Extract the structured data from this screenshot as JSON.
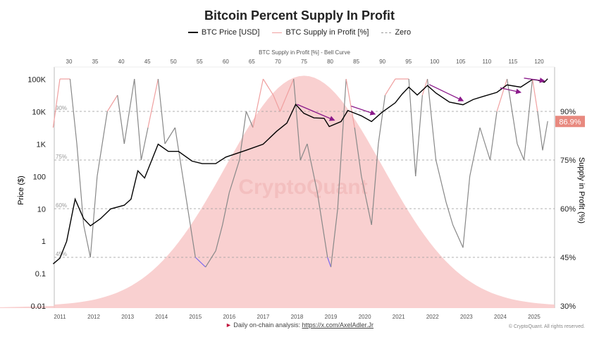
{
  "chart_data": {
    "type": "line",
    "title": "Bitcoin Percent Supply In Profit",
    "legend": [
      "BTC Price [USD]",
      "BTC Supply in Profit [%]",
      "Zero"
    ],
    "legend_placement": "top-center",
    "top_axis_label": "BTC Supply in Profit [%] - Bell Curve",
    "top_ticks": [
      "30",
      "35",
      "40",
      "45",
      "50",
      "55",
      "60",
      "65",
      "70",
      "75",
      "80",
      "85",
      "90",
      "95",
      "100",
      "105",
      "110",
      "115",
      "120"
    ],
    "xticks": [
      "2011",
      "2012",
      "2013",
      "2014",
      "2015",
      "2016",
      "2017",
      "2018",
      "2019",
      "2020",
      "2021",
      "2022",
      "2023",
      "2024",
      "2025"
    ],
    "ylabel_left": "Price ($)",
    "ylabel_right": "Supply in Profit (%)",
    "yticks_left": [
      "0.01",
      "0.1",
      "1",
      "10",
      "100",
      "1K",
      "10K",
      "100K"
    ],
    "ylim_left": [
      0.01,
      100000
    ],
    "yscale_left": "log",
    "yticks_right": [
      "30%",
      "45%",
      "60%",
      "75%",
      "90%"
    ],
    "ylim_right": [
      30,
      104
    ],
    "ref_line_labels": [
      "90%",
      "75%",
      "60%",
      "45%"
    ],
    "current_value_label": "86.9%",
    "watermark": "CryptoQuant",
    "colors": {
      "price": "#000000",
      "supply": "#888888",
      "supply_high": "#f0a0a0",
      "supply_low": "#7b68ee",
      "bell": "#f8c8c8",
      "arrow": "#8b1a8b",
      "badge": "#e8897f",
      "zero": "#999999"
    },
    "price_series": {
      "name": "BTC Price [USD]",
      "x": [
        2010.8,
        2011.0,
        2011.2,
        2011.45,
        2011.7,
        2011.9,
        2012.2,
        2012.5,
        2012.9,
        2013.1,
        2013.3,
        2013.5,
        2013.9,
        2014.2,
        2014.5,
        2014.9,
        2015.2,
        2015.6,
        2015.9,
        2016.5,
        2017.0,
        2017.4,
        2017.7,
        2017.96,
        2018.2,
        2018.5,
        2018.8,
        2018.95,
        2019.3,
        2019.5,
        2019.9,
        2020.2,
        2020.5,
        2020.9,
        2021.1,
        2021.3,
        2021.55,
        2021.85,
        2022.1,
        2022.5,
        2022.9,
        2023.2,
        2023.5,
        2023.9,
        2024.2,
        2024.6,
        2024.95,
        2025.1,
        2025.3,
        2025.4
      ],
      "values": [
        0.2,
        0.3,
        1,
        20,
        5,
        3,
        5,
        10,
        13,
        20,
        150,
        90,
        1000,
        600,
        600,
        300,
        250,
        250,
        400,
        650,
        1000,
        2500,
        4500,
        17000,
        9000,
        6500,
        6300,
        3500,
        5000,
        11000,
        7500,
        5000,
        9500,
        19000,
        35000,
        58000,
        33000,
        65000,
        38000,
        20000,
        16500,
        24000,
        30000,
        40000,
        68000,
        58000,
        100000,
        95000,
        82000,
        105000
      ]
    },
    "supply_series": {
      "name": "BTC Supply in Profit [%]",
      "x": [
        2010.8,
        2011.0,
        2011.3,
        2011.5,
        2011.7,
        2011.9,
        2012.1,
        2012.4,
        2012.7,
        2012.9,
        2013.2,
        2013.4,
        2013.6,
        2013.9,
        2014.1,
        2014.4,
        2014.7,
        2015.0,
        2015.3,
        2015.6,
        2015.8,
        2016.0,
        2016.3,
        2016.5,
        2016.7,
        2017.0,
        2017.3,
        2017.5,
        2017.9,
        2018.1,
        2018.3,
        2018.6,
        2018.9,
        2019.0,
        2019.2,
        2019.45,
        2019.7,
        2019.9,
        2020.2,
        2020.4,
        2020.6,
        2020.9,
        2021.3,
        2021.5,
        2021.7,
        2021.85,
        2022.1,
        2022.4,
        2022.6,
        2022.9,
        2023.1,
        2023.4,
        2023.7,
        2023.9,
        2024.2,
        2024.5,
        2024.7,
        2024.95,
        2025.1,
        2025.25,
        2025.4
      ],
      "values": [
        85,
        100,
        100,
        80,
        55,
        45,
        70,
        90,
        95,
        80,
        100,
        75,
        85,
        100,
        80,
        85,
        65,
        45,
        42,
        47,
        55,
        65,
        75,
        90,
        85,
        100,
        95,
        90,
        100,
        75,
        80,
        65,
        45,
        42,
        60,
        100,
        85,
        70,
        55,
        80,
        95,
        100,
        100,
        70,
        95,
        100,
        75,
        62,
        55,
        48,
        70,
        85,
        75,
        90,
        100,
        80,
        75,
        100,
        90,
        78,
        87
      ]
    },
    "bell_curve": {
      "mean": 75,
      "sd": 15,
      "peak_percent": 101
    },
    "arrows": [
      {
        "from": [
          2018.0,
          17000
        ],
        "to": [
          2019.1,
          5500
        ]
      },
      {
        "from": [
          2019.6,
          15000
        ],
        "to": [
          2020.3,
          8500
        ]
      },
      {
        "from": [
          2021.9,
          70000
        ],
        "to": [
          2022.9,
          22000
        ]
      },
      {
        "from": [
          2024.0,
          55000
        ],
        "to": [
          2024.6,
          40000
        ]
      },
      {
        "from": [
          2024.7,
          110000
        ],
        "to": [
          2025.3,
          90000
        ]
      }
    ]
  },
  "footer": {
    "prefix": "Daily on-chain analysis:",
    "link": "https://x.com/AxelAdler.Jr",
    "copyright": "© CryptoQuant. All rights reserved."
  }
}
